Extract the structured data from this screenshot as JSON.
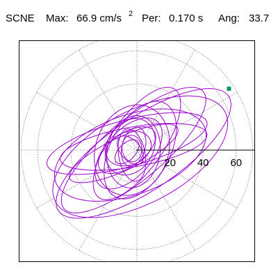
{
  "header": {
    "station": "SCNE",
    "max_label": "Max:",
    "max_value": "66.9 cm/s",
    "max_exp": "2",
    "per_label": "Per:",
    "per_value": "0.170 s",
    "ang_label": "Ang:",
    "ang_value": "33.7"
  },
  "chart_data": {
    "type": "polar-particle-motion",
    "radial_ticks": [
      20,
      40,
      60
    ],
    "radial_max": 70,
    "angular_grid_deg": [
      0,
      30,
      60,
      90,
      120,
      150,
      180,
      210,
      240,
      270,
      300,
      330
    ],
    "grid": true,
    "max_amplitude": 66.9,
    "max_angle_deg": 33.7,
    "colors": {
      "trace": "#9900cc",
      "marker": "#009966",
      "grid": "#777777",
      "axis": "#000000"
    },
    "trace_ellipses": [
      {
        "a": 62,
        "b": 22,
        "rot": 34,
        "cx": 4,
        "cy": -2
      },
      {
        "a": 58,
        "b": 28,
        "rot": 28,
        "cx": 2,
        "cy": -4
      },
      {
        "a": 55,
        "b": 18,
        "rot": 40,
        "cx": -2,
        "cy": 0
      },
      {
        "a": 48,
        "b": 24,
        "rot": 20,
        "cx": -4,
        "cy": -3
      },
      {
        "a": 45,
        "b": 12,
        "rot": 10,
        "cx": -2,
        "cy": 2
      },
      {
        "a": 50,
        "b": 14,
        "rot": 15,
        "cx": -6,
        "cy": 4
      },
      {
        "a": 40,
        "b": 16,
        "rot": 55,
        "cx": 0,
        "cy": 4
      },
      {
        "a": 36,
        "b": 10,
        "rot": 25,
        "cx": -8,
        "cy": -2
      },
      {
        "a": 32,
        "b": 18,
        "rot": 62,
        "cx": 2,
        "cy": 0
      },
      {
        "a": 28,
        "b": 22,
        "rot": 70,
        "cx": -3,
        "cy": 0
      },
      {
        "a": 26,
        "b": 14,
        "rot": 48,
        "cx": -5,
        "cy": -2
      },
      {
        "a": 22,
        "b": 16,
        "rot": 80,
        "cx": -2,
        "cy": -1
      },
      {
        "a": 20,
        "b": 10,
        "rot": 35,
        "cx": -6,
        "cy": 0
      },
      {
        "a": 18,
        "b": 14,
        "rot": 60,
        "cx": -4,
        "cy": 2
      },
      {
        "a": 16,
        "b": 8,
        "rot": 100,
        "cx": -3,
        "cy": -3
      },
      {
        "a": 14,
        "b": 10,
        "rot": 20,
        "cx": -5,
        "cy": 1
      },
      {
        "a": 12,
        "b": 7,
        "rot": 75,
        "cx": -2,
        "cy": 2
      },
      {
        "a": 10,
        "b": 6,
        "rot": 130,
        "cx": -4,
        "cy": 0
      },
      {
        "a": 9,
        "b": 5,
        "rot": 45,
        "cx": -6,
        "cy": -1
      },
      {
        "a": 8,
        "b": 6,
        "rot": 95,
        "cx": -3,
        "cy": 1
      }
    ]
  }
}
